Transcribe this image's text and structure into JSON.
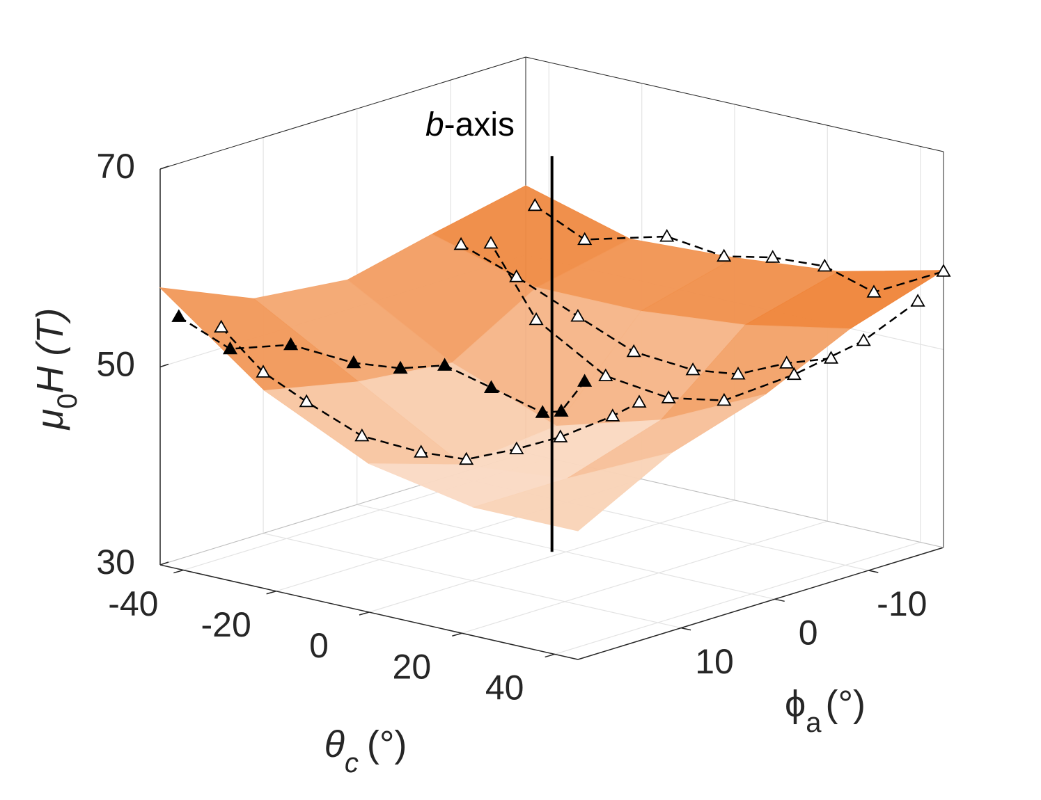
{
  "chart_data": {
    "type": "surface3d",
    "xlabel": {
      "main": "θ",
      "sub": "c",
      "unit": "(°)"
    },
    "ylabel": {
      "main": "ϕ",
      "sub": "a",
      "unit": "(°)"
    },
    "zlabel": {
      "main": "μ",
      "sub": "0",
      "rest": "H (T)"
    },
    "annotation": {
      "italic": "b",
      "rest": "-axis"
    },
    "xlim": [
      -45,
      45
    ],
    "xticks": [
      -40,
      -20,
      0,
      20,
      40
    ],
    "ylim": [
      -18,
      21
    ],
    "yticks": [
      -10,
      0,
      10
    ],
    "zlim": [
      30,
      70
    ],
    "zticks": [
      30,
      50,
      70
    ],
    "grid": true,
    "surface": {
      "theta": [
        -45,
        -22.5,
        0,
        22.5,
        45
      ],
      "phi": [
        21,
        11,
        1,
        -8,
        -18
      ],
      "z": [
        [
          58,
          50,
          45,
          43,
          43
        ],
        [
          54,
          48,
          42,
          43,
          48
        ],
        [
          53,
          47,
          43,
          46,
          51
        ],
        [
          55,
          52,
          52,
          53,
          55
        ],
        [
          57,
          54,
          54.5,
          55.5,
          58
        ]
      ],
      "color_low": "#fdf1e8",
      "color_high": "#ef8235"
    },
    "b_axis": {
      "theta": 0,
      "phi": 0,
      "z": [
        30,
        70
      ],
      "color": "#000000"
    },
    "series": [
      {
        "marker": "filled",
        "color": "#000000",
        "theta": [
          -43,
          -38,
          -31,
          -23.5,
          -19.5,
          -14,
          -8,
          -2,
          -1,
          1
        ],
        "phi": [
          20,
          17,
          14,
          11,
          8,
          6,
          4,
          1.5,
          0,
          -1.5
        ],
        "z": [
          55,
          51.4,
          51.7,
          49.8,
          48.8,
          49.1,
          46.9,
          44.3,
          44.1,
          46.9
        ]
      },
      {
        "marker": "open",
        "color": "#000000",
        "theta": [
          -37.9,
          -32.9,
          -27.6,
          -19.7,
          -11,
          -5.3,
          1.5,
          6.9,
          14.1,
          15.8
        ],
        "phi": [
          18,
          16,
          14,
          12,
          10,
          8,
          6,
          4,
          2,
          0
        ],
        "z": [
          53.9,
          49.3,
          46.3,
          43.1,
          41.8,
          41.1,
          42.3,
          43.5,
          45.8,
          46.8
        ]
      },
      {
        "marker": "open",
        "color": "#000000",
        "theta": [
          -43,
          -32.3,
          -14.6,
          -2.3,
          8.2,
          19.4,
          30,
          45
        ],
        "phi": [
          -18,
          -18,
          -18,
          -18,
          -18,
          -18,
          -18,
          -18
        ],
        "z": [
          55.2,
          52.9,
          55.1,
          54.4,
          55.4,
          55.7,
          54.2,
          57.9
        ]
      },
      {
        "marker": "open",
        "color": "#000000",
        "theta": [
          43.5,
          39.9,
          33,
          26,
          20.1,
          12.6,
          3.7,
          0
        ],
        "phi": [
          -16,
          -12,
          -8,
          -4,
          -1,
          2,
          5,
          8
        ],
        "z": [
          55.3,
          52.1,
          49.1,
          46.9,
          47.4,
          49.7,
          55.3,
          63.5
        ]
      },
      {
        "marker": "open",
        "color": "#000000",
        "theta": [
          -2.4,
          5.5,
          14.7,
          22.7,
          31.4,
          37.1,
          41.5,
          45
        ],
        "phi": [
          10,
          8,
          6,
          4,
          2,
          0,
          -3,
          -6
        ],
        "z": [
          63.7,
          60.7,
          57.1,
          53.8,
          52.3,
          51.9,
          52.6,
          52.6
        ]
      }
    ]
  }
}
